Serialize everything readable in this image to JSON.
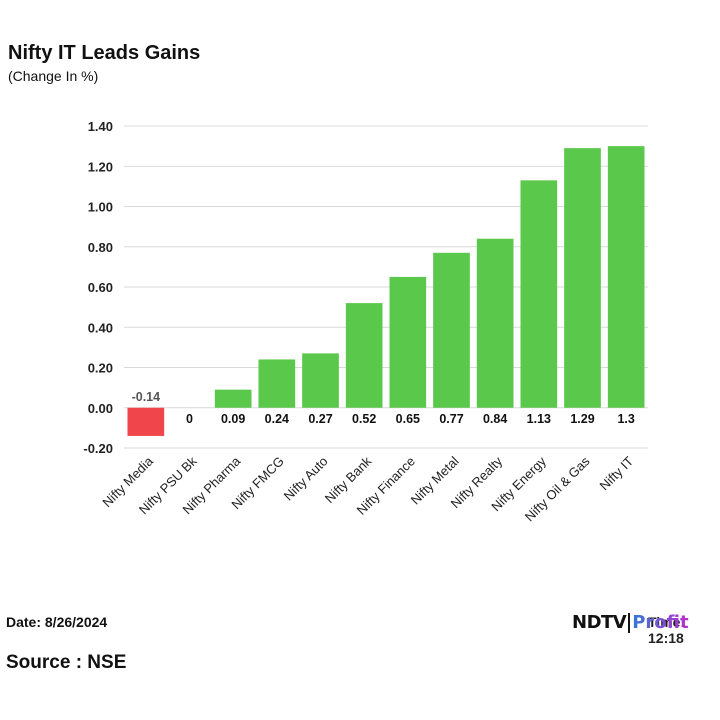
{
  "header": {
    "title": "Nifty IT Leads Gains",
    "subtitle": "(Change In %)"
  },
  "footer": {
    "date": "Date: 8/26/2024",
    "source": "Source : NSE",
    "time": "Time: 12:18",
    "logo_ndtv": "NDTV",
    "logo_profit": "Profit"
  },
  "colors": {
    "positive": "#5ac84a",
    "negative": "#f0454a",
    "grid": "#d9d9d9"
  },
  "chart_data": {
    "type": "bar",
    "title": "Nifty IT Leads Gains",
    "subtitle": "(Change In %)",
    "xlabel": "",
    "ylabel": "",
    "ylim": [
      -0.2,
      1.4
    ],
    "yticks": [
      "1.40",
      "1.20",
      "1.00",
      "0.80",
      "0.60",
      "0.40",
      "0.20",
      "0.00",
      "-0.20"
    ],
    "grid": true,
    "categories": [
      "Nifty Media",
      "Nifty PSU Bk",
      "Nifty Pharma",
      "Nifty FMCG",
      "Nifty Auto",
      "Nifty Bank",
      "Nifty Finance",
      "Nifty Metal",
      "Nifty Realty",
      "Nifty Energy",
      "Nifty Oil & Gas",
      "Nifty IT"
    ],
    "values": [
      -0.14,
      0,
      0.09,
      0.24,
      0.27,
      0.52,
      0.65,
      0.77,
      0.84,
      1.13,
      1.29,
      1.3
    ],
    "data_labels": [
      "-0.14",
      "0",
      "0.09",
      "0.24",
      "0.27",
      "0.52",
      "0.65",
      "0.77",
      "0.84",
      "1.13",
      "1.29",
      "1.3"
    ]
  }
}
